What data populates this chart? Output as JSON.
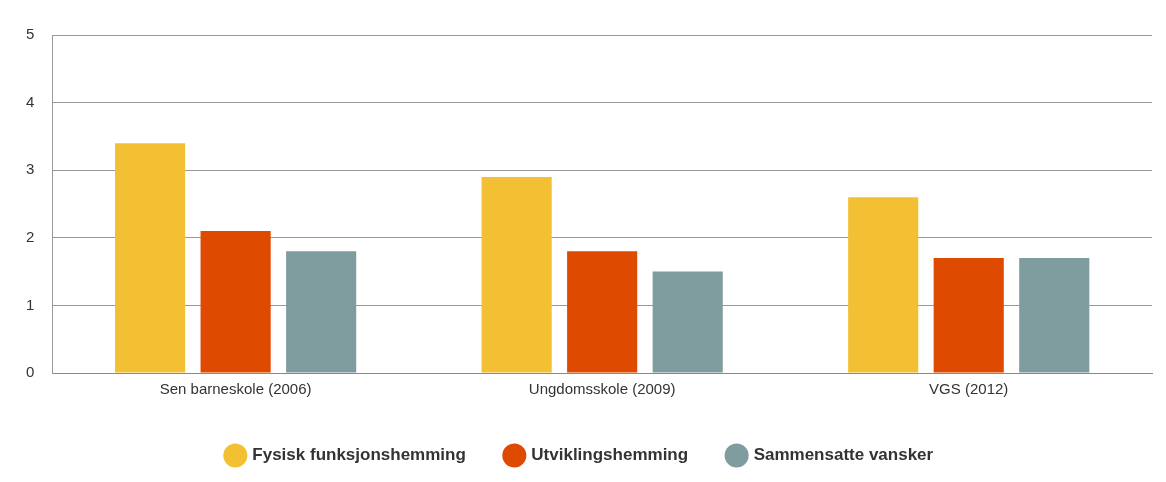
{
  "chart_data": {
    "type": "bar",
    "categories": [
      "Sen barneskole (2006)",
      "Ungdomsskole (2009)",
      "VGS (2012)"
    ],
    "series": [
      {
        "name": "Fysisk funksjonshemming",
        "color": "#f4c033",
        "values": [
          3.4,
          2.9,
          2.6
        ]
      },
      {
        "name": "Utviklingshemming",
        "color": "#dd4a00",
        "values": [
          2.1,
          1.8,
          1.7
        ]
      },
      {
        "name": "Sammensatte vansker",
        "color": "#7f9c9f",
        "values": [
          1.8,
          1.5,
          1.7
        ]
      }
    ],
    "ylim": [
      0,
      5
    ],
    "yticks": [
      0,
      1,
      2,
      3,
      4,
      5
    ],
    "grid": "y",
    "legend": "bottom"
  }
}
